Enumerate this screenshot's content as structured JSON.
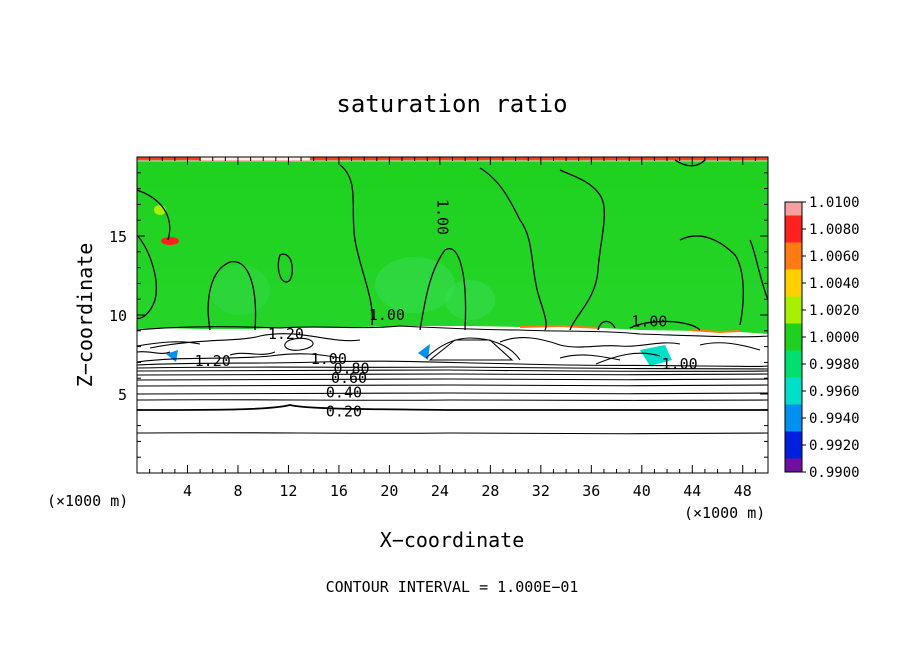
{
  "chart_data": {
    "type": "heatmap",
    "title": "saturation ratio",
    "xlabel": "X−coordinate",
    "ylabel": "Z−coordinate",
    "x_unit_label": "(×1000 m)",
    "z_unit_label": "(×1000 m)",
    "xlim": [
      0,
      50
    ],
    "ylim": [
      0,
      20
    ],
    "x_ticks": [
      4,
      8,
      12,
      16,
      20,
      24,
      28,
      32,
      36,
      40,
      44,
      48
    ],
    "y_ticks": [
      5,
      10,
      15
    ],
    "footer": "CONTOUR INTERVAL = 1.000E−01",
    "colorbar": {
      "labels": [
        "1.0100",
        "1.0080",
        "1.0060",
        "1.0040",
        "1.0020",
        "1.0000",
        "0.9980",
        "0.9960",
        "0.9940",
        "0.9920",
        "0.9900"
      ],
      "colors": [
        "#f4a0a0",
        "#ff2020",
        "#ff7a10",
        "#ffd000",
        "#a8f000",
        "#20d020",
        "#00e070",
        "#00e0c8",
        "#0090f0",
        "#0020e0",
        "#7010a0"
      ]
    },
    "contour_labels": [
      {
        "text": "1.00",
        "x": 24.2,
        "z": 16.2,
        "rotation": 90
      },
      {
        "text": "1.00",
        "x": 19.8,
        "z": 10.0
      },
      {
        "text": "1.00",
        "x": 40.6,
        "z": 9.6
      },
      {
        "text": "1.20",
        "x": 11.8,
        "z": 8.8
      },
      {
        "text": "1.20",
        "x": 6.0,
        "z": 7.1
      },
      {
        "text": "1.00",
        "x": 15.2,
        "z": 7.2
      },
      {
        "text": "1.00",
        "x": 43.0,
        "z": 6.9
      },
      {
        "text": "0.80",
        "x": 17.0,
        "z": 6.6
      },
      {
        "text": "0.60",
        "x": 16.8,
        "z": 6.0
      },
      {
        "text": "0.40",
        "x": 16.4,
        "z": 5.1
      },
      {
        "text": "0.20",
        "x": 16.4,
        "z": 3.9
      }
    ]
  }
}
